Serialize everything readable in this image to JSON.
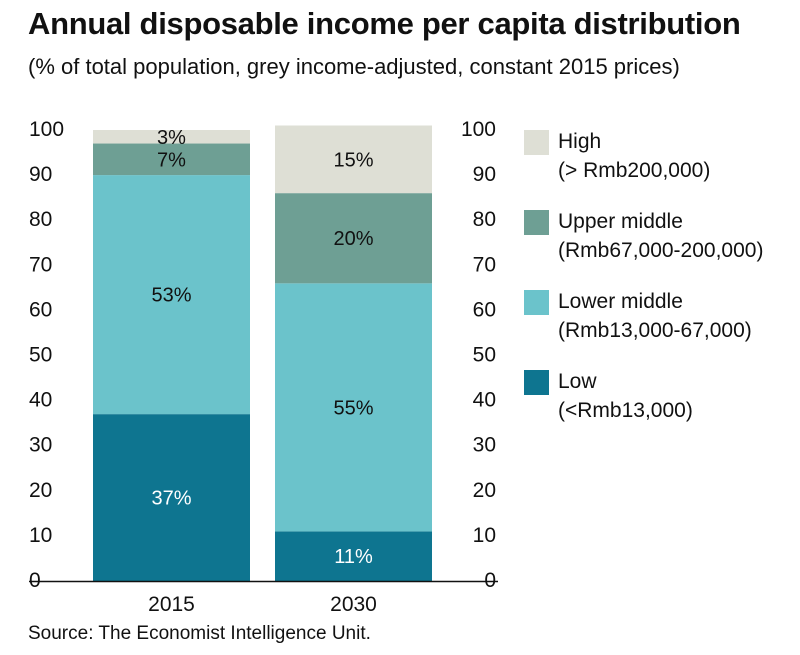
{
  "title": "Annual disposable income per capita distribution",
  "subtitle": "(% of total population, grey income-adjusted, constant 2015 prices)",
  "source": "Source: The Economist Intelligence Unit.",
  "legend": [
    {
      "label": "High",
      "range": "(> Rmb200,000)",
      "color": "#dedfd5"
    },
    {
      "label": "Upper middle",
      "range": "(Rmb67,000-200,000)",
      "color": "#6e9f94"
    },
    {
      "label": "Lower middle",
      "range": "(Rmb13,000-67,000)",
      "color": "#6bc3cb"
    },
    {
      "label": "Low",
      "range": "(<Rmb13,000)",
      "color": "#0e7590"
    }
  ],
  "chart_data": {
    "type": "bar",
    "stacked": true,
    "categories": [
      "2015",
      "2030"
    ],
    "series": [
      {
        "name": "Low",
        "values": [
          37,
          11
        ],
        "labels": [
          "37%",
          "11%"
        ],
        "color": "#0e7590",
        "label_color": "#ffffff"
      },
      {
        "name": "Lower middle",
        "values": [
          53,
          55
        ],
        "labels": [
          "53%",
          "55%"
        ],
        "color": "#6bc3cb",
        "label_color": "#111111"
      },
      {
        "name": "Upper middle",
        "values": [
          7,
          20
        ],
        "labels": [
          "7%",
          "20%"
        ],
        "color": "#6e9f94",
        "label_color": "#111111"
      },
      {
        "name": "High",
        "values": [
          3,
          15
        ],
        "labels": [
          "3%",
          "15%"
        ],
        "color": "#dedfd5",
        "label_color": "#111111"
      }
    ],
    "ylim": [
      0,
      100
    ],
    "yticks": [
      0,
      10,
      20,
      30,
      40,
      50,
      60,
      70,
      80,
      90,
      100
    ],
    "ytick_labels_both_sides": true,
    "grid": false,
    "legend_position": "right"
  }
}
